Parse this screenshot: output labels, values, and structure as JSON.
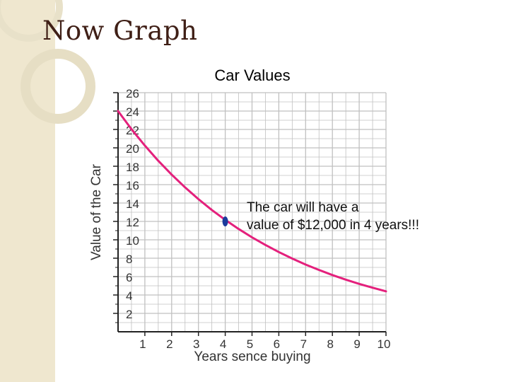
{
  "slide": {
    "title": "Now Graph",
    "annotation_lines": [
      "The car will have a",
      "value of $12,000 in 4 years!!!"
    ]
  },
  "colors": {
    "curve": "#e4207c",
    "point": "#1a3a9c",
    "grid": "#c0c0c0",
    "accent_strip": "#efe7cf",
    "title": "#3f1f16"
  },
  "chart_data": {
    "type": "line",
    "title": "Car Values",
    "xlabel": "Years sence buying",
    "ylabel": "Value of the Car",
    "xlim": [
      0,
      10
    ],
    "ylim": [
      0,
      26
    ],
    "x_ticks": [
      1,
      2,
      3,
      4,
      5,
      6,
      7,
      8,
      9,
      10
    ],
    "y_ticks": [
      2,
      4,
      6,
      8,
      10,
      12,
      14,
      16,
      18,
      20,
      22,
      24,
      26
    ],
    "grid": true,
    "series": [
      {
        "x": [
          0,
          0.5,
          1,
          1.5,
          2,
          2.5,
          3,
          3.5,
          4,
          4.5,
          5,
          5.5,
          6,
          6.5,
          7,
          7.5,
          8,
          8.5,
          9,
          9.5,
          10
        ],
        "values": [
          24,
          22.04,
          20.25,
          18.6,
          17.09,
          15.7,
          14.42,
          13.25,
          12.17,
          11.18,
          10.27,
          9.44,
          8.67,
          7.96,
          7.31,
          6.72,
          6.17,
          5.67,
          5.21,
          4.79,
          4.4
        ]
      }
    ],
    "highlight_point": {
      "x": 4,
      "y": 12
    }
  }
}
